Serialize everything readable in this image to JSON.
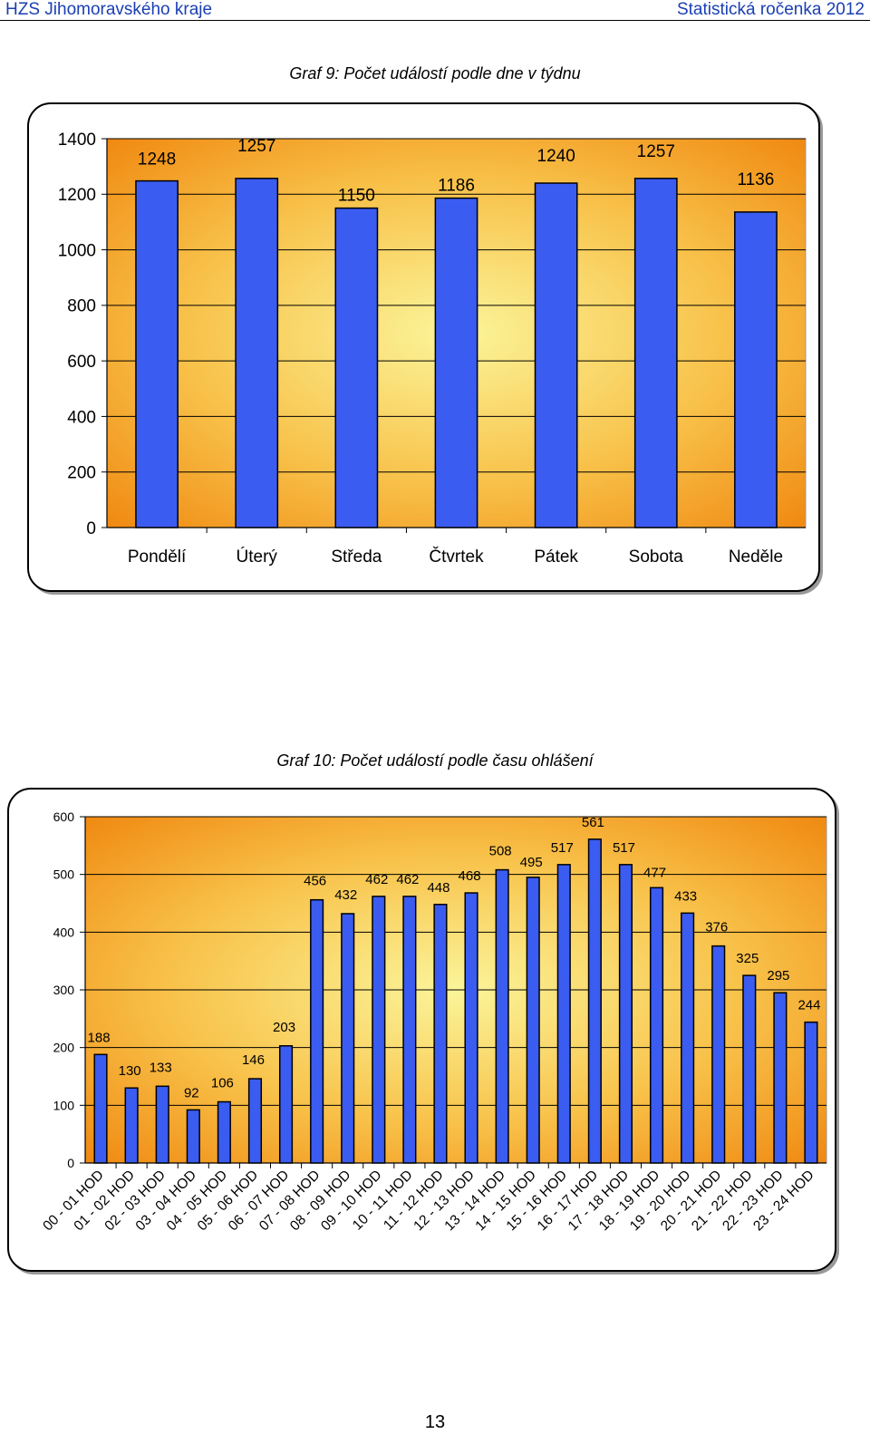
{
  "header": {
    "left": "HZS Jihomoravského kraje",
    "right": "Statistická ročenka 2012"
  },
  "page_number": "13",
  "chart_data": [
    {
      "type": "bar",
      "title": "Graf 9: Počet událostí podle dne v týdnu",
      "categories": [
        "Pondělí",
        "Úterý",
        "Středa",
        "Čtvrtek",
        "Pátek",
        "Sobota",
        "Neděle"
      ],
      "values": [
        1248,
        1257,
        1150,
        1186,
        1240,
        1257,
        1136
      ],
      "ylim": [
        0,
        1400
      ],
      "yticks": [
        0,
        200,
        400,
        600,
        800,
        1000,
        1200,
        1400
      ],
      "xlabel": "",
      "ylabel": "",
      "grid": true,
      "bar_color": "#3b5cf0",
      "legend": "none"
    },
    {
      "type": "bar",
      "title": "Graf 10: Počet událostí podle času ohlášení",
      "categories": [
        "00 - 01 HOD",
        "01 - 02 HOD",
        "02 - 03 HOD",
        "03 - 04 HOD",
        "04 - 05 HOD",
        "05 - 06 HOD",
        "06 - 07 HOD",
        "07 - 08 HOD",
        "08 - 09 HOD",
        "09 - 10 HOD",
        "10 - 11 HOD",
        "11 - 12 HOD",
        "12 - 13 HOD",
        "13 - 14 HOD",
        "14 - 15 HOD",
        "15 - 16 HOD",
        "16 - 17 HOD",
        "17 - 18 HOD",
        "18 - 19 HOD",
        "19 - 20 HOD",
        "20 - 21 HOD",
        "21 - 22 HOD",
        "22 - 23 HOD",
        "23 - 24 HOD"
      ],
      "values": [
        188,
        130,
        133,
        92,
        106,
        146,
        203,
        456,
        432,
        462,
        462,
        448,
        468,
        508,
        495,
        517,
        561,
        517,
        477,
        433,
        376,
        325,
        295,
        244
      ],
      "ylim": [
        0,
        600
      ],
      "yticks": [
        0,
        100,
        200,
        300,
        400,
        500,
        600
      ],
      "xlabel": "",
      "ylabel": "",
      "grid": true,
      "bar_color": "#3b5cf0",
      "legend": "none"
    }
  ]
}
